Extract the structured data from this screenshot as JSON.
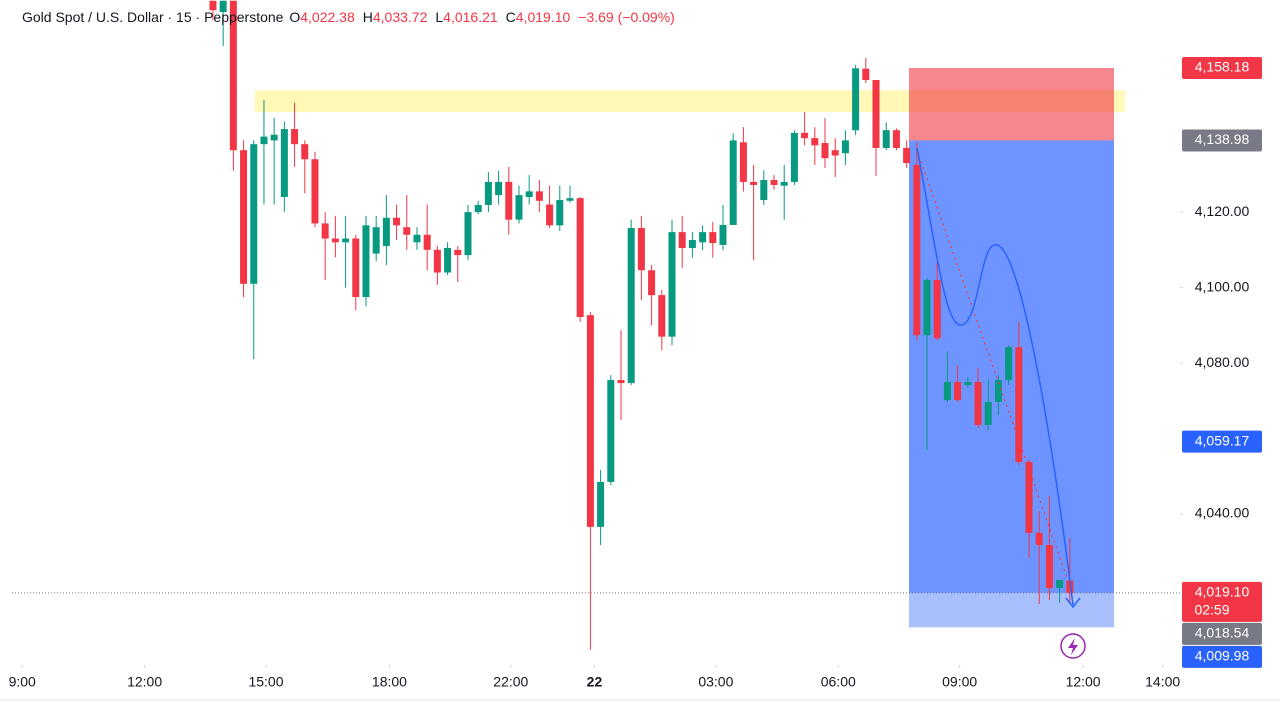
{
  "header": {
    "title": "Gold Spot / U.S. Dollar · 15 · Pepperstone",
    "ohlc": [
      {
        "key": "O",
        "value": "4,022.38"
      },
      {
        "key": "H",
        "value": "4,033.72"
      },
      {
        "key": "L",
        "value": "4,016.21"
      },
      {
        "key": "C",
        "value": "4,019.10"
      }
    ],
    "change": "−3.69 (−0.09%)"
  },
  "chart_data": {
    "type": "candlestick",
    "colors": {
      "up": "#089981",
      "down": "#f23645"
    },
    "candles": [
      [
        4176,
        4176,
        4171,
        4173.5
      ],
      [
        4173,
        4176,
        4164,
        4176
      ],
      [
        4176,
        4176,
        4131,
        4136.4
      ],
      [
        4136.4,
        4139,
        4097.5,
        4101
      ],
      [
        4101,
        4139,
        4081,
        4138
      ],
      [
        4138,
        4149.7,
        4122,
        4140
      ],
      [
        4139,
        4145,
        4122,
        4140.5
      ],
      [
        4124,
        4144,
        4120,
        4142
      ],
      [
        4142,
        4149,
        4132,
        4138
      ],
      [
        4138,
        4139,
        4125,
        4134
      ],
      [
        4134,
        4136,
        4116,
        4117
      ],
      [
        4117,
        4120,
        4102,
        4113
      ],
      [
        4113,
        4119,
        4108,
        4112
      ],
      [
        4112,
        4119,
        4100,
        4113
      ],
      [
        4113,
        4114,
        4094,
        4097.5
      ],
      [
        4097.5,
        4119,
        4095,
        4116.5
      ],
      [
        4109,
        4119,
        4107,
        4116
      ],
      [
        4111,
        4124.5,
        4106,
        4118.5
      ],
      [
        4118.5,
        4122,
        4112.6,
        4116.5
      ],
      [
        4116,
        4124.5,
        4110,
        4114
      ],
      [
        4112,
        4116,
        4110,
        4114
      ],
      [
        4114,
        4122,
        4104.6,
        4110
      ],
      [
        4110,
        4111,
        4100.7,
        4104
      ],
      [
        4104,
        4112,
        4103.3,
        4110.5
      ],
      [
        4110,
        4111,
        4101.5,
        4108.6
      ],
      [
        4108.6,
        4121.9,
        4107.3,
        4120
      ],
      [
        4120,
        4123,
        4119.5,
        4121.9
      ],
      [
        4121.9,
        4130.6,
        4120,
        4128
      ],
      [
        4124.5,
        4131,
        4122,
        4128
      ],
      [
        4128,
        4132,
        4114,
        4118
      ],
      [
        4118,
        4127,
        4117,
        4124.5
      ],
      [
        4124,
        4129.8,
        4122,
        4125.5
      ],
      [
        4125.5,
        4128.5,
        4120,
        4123
      ],
      [
        4122,
        4127,
        4115.8,
        4116.5
      ],
      [
        4116.5,
        4127,
        4115,
        4123.2
      ],
      [
        4123,
        4127,
        4122.5,
        4123.7
      ],
      [
        4123.7,
        4124,
        4090.9,
        4092.2
      ],
      [
        4092.7,
        4093.5,
        4004,
        4036.6
      ],
      [
        4036.6,
        4051.7,
        4031.8,
        4048.5
      ],
      [
        4048.5,
        4076.8,
        4047.7,
        4075.5
      ],
      [
        4075.5,
        4088.7,
        4064.9,
        4074.7
      ],
      [
        4074.7,
        4118,
        4074.2,
        4115.8
      ],
      [
        4115.8,
        4119,
        4096.7,
        4104.6
      ],
      [
        4104.6,
        4106,
        4090,
        4098
      ],
      [
        4098,
        4099.4,
        4083.4,
        4087
      ],
      [
        4087,
        4118,
        4084.7,
        4114.7
      ],
      [
        4114.7,
        4119,
        4105.2,
        4110.5
      ],
      [
        4110.5,
        4114.7,
        4107.9,
        4112.6
      ],
      [
        4112,
        4116.5,
        4109.9,
        4114.7
      ],
      [
        4114.7,
        4117.4,
        4107.9,
        4111.8
      ],
      [
        4111.3,
        4121.9,
        4109.9,
        4116.6
      ],
      [
        4116.6,
        4140.9,
        4116.6,
        4139
      ],
      [
        4138.5,
        4142.5,
        4125.4,
        4128
      ],
      [
        4128,
        4132.5,
        4107.3,
        4127.2
      ],
      [
        4123.2,
        4131.1,
        4121.9,
        4128.5
      ],
      [
        4128.5,
        4129.8,
        4126,
        4127.2
      ],
      [
        4127,
        4132.5,
        4118,
        4128
      ],
      [
        4128,
        4141.7,
        4127.2,
        4141
      ],
      [
        4141,
        4146.5,
        4137.7,
        4139.6
      ],
      [
        4139.6,
        4142.5,
        4132.5,
        4137.7
      ],
      [
        4138.3,
        4144.9,
        4131.7,
        4134.3
      ],
      [
        4136.4,
        4139.6,
        4129.3,
        4135
      ],
      [
        4135.6,
        4141.7,
        4132.5,
        4139
      ],
      [
        4141.7,
        4159,
        4140.4,
        4158.1
      ],
      [
        4158,
        4160.8,
        4154.2,
        4155
      ],
      [
        4155,
        4155,
        4129.6,
        4137
      ],
      [
        4137,
        4143.8,
        4136.4,
        4141.7
      ],
      [
        4141.7,
        4142.2,
        4136.4,
        4137
      ],
      [
        4137,
        4139,
        4131.7,
        4133
      ],
      [
        4132.5,
        4138.5,
        4086,
        4087.4
      ],
      [
        4087.4,
        4102.5,
        4057,
        4102
      ],
      [
        4102,
        4106.8,
        4086,
        4086.6
      ],
      [
        4070.2,
        4083.1,
        4069.7,
        4075
      ],
      [
        4075,
        4079.4,
        4069.7,
        4070.2
      ],
      [
        4074.2,
        4076.3,
        4073.4,
        4075
      ],
      [
        4075,
        4078.7,
        4062.8,
        4063.6
      ],
      [
        4063.6,
        4075.8,
        4062.3,
        4069.7
      ],
      [
        4069.7,
        4076.8,
        4066.3,
        4075.5
      ],
      [
        4075.5,
        4084.7,
        4074.2,
        4084.2
      ],
      [
        4084.2,
        4090.9,
        4053,
        4053.8
      ],
      [
        4053.8,
        4054.3,
        4028.4,
        4035
      ],
      [
        4035,
        4040.8,
        4016.2,
        4031.8
      ],
      [
        4031.8,
        4044.8,
        4017.2,
        4020.4
      ],
      [
        4020.4,
        4022.5,
        4016.5,
        4022.5
      ],
      [
        4022.38,
        4033.72,
        4016.21,
        4019.1
      ]
    ],
    "xlim": [
      -19.7,
      94.8
    ],
    "xticks": [
      {
        "value": -18.7,
        "label": "9:00"
      },
      {
        "value": -6.7,
        "label": "12:00"
      },
      {
        "value": 5.2,
        "label": "15:00"
      },
      {
        "value": 17.3,
        "label": "18:00"
      },
      {
        "value": 29.2,
        "label": "22:00"
      },
      {
        "value": 37.4,
        "label": "22"
      },
      {
        "value": 49.3,
        "label": "03:00"
      },
      {
        "value": 61.3,
        "label": "06:00"
      },
      {
        "value": 73.2,
        "label": "09:00"
      },
      {
        "value": 85.3,
        "label": "12:00"
      },
      {
        "value": 93.1,
        "label": "14:00"
      }
    ],
    "ylim": [
      4000,
      4176.2
    ],
    "yticks": [
      {
        "value": 4040,
        "label": "4,040.00"
      },
      {
        "value": 4080,
        "label": "4,080.00"
      },
      {
        "value": 4100,
        "label": "4,100.00"
      },
      {
        "value": 4120,
        "label": "4,120.00"
      }
    ],
    "zone": [
      4146.5,
      4152.3
    ],
    "price_tags": [
      {
        "value": 4158.18,
        "label": "4,158.18",
        "color": "#f23645"
      },
      {
        "value": 4138.98,
        "label": "4,138.98",
        "color": "#787b86"
      },
      {
        "value": 4059.17,
        "label": "4,059.17",
        "color": "#2962ff"
      },
      {
        "value": 4019.1,
        "label": "4,019.10",
        "color": "#f23645"
      },
      {
        "value": 4018.54,
        "label": "4,018.54",
        "color": "#787b86"
      },
      {
        "value": 4009.98,
        "label": "4,009.98",
        "color": "#2962ff"
      }
    ],
    "countdown": "02:59"
  }
}
